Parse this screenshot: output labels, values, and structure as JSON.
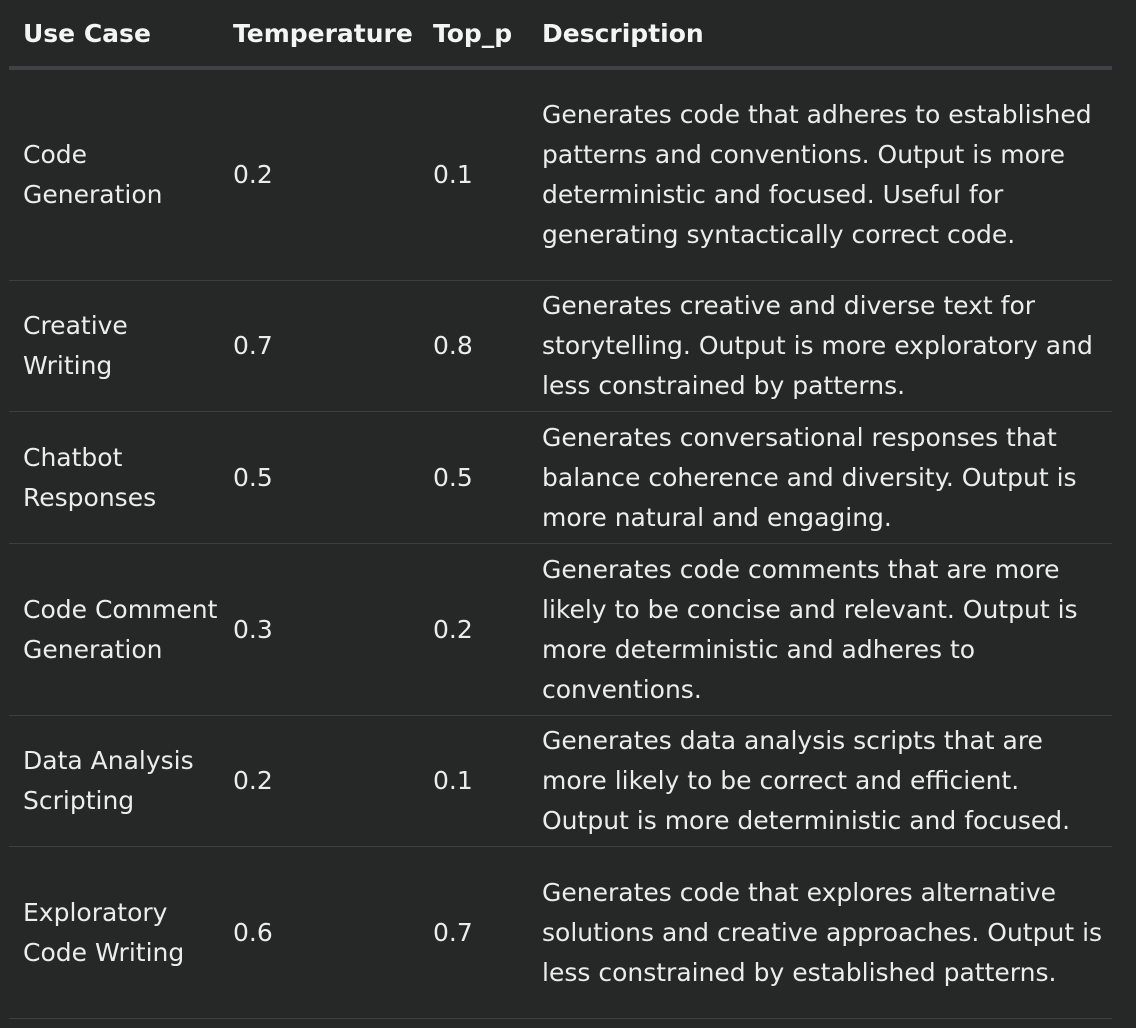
{
  "table": {
    "headers": [
      "Use Case",
      "Temperature",
      "Top_p",
      "Description"
    ],
    "rows": [
      {
        "use_case": "Code Generation",
        "temperature": "0.2",
        "top_p": "0.1",
        "description": "Generates code that adheres to established patterns and conventions. Output is more deterministic and focused. Useful for generating syntactically correct code."
      },
      {
        "use_case": "Creative Writing",
        "temperature": "0.7",
        "top_p": "0.8",
        "description": "Generates creative and diverse text for storytelling. Output is more exploratory and less constrained by patterns."
      },
      {
        "use_case": "Chatbot Responses",
        "temperature": "0.5",
        "top_p": "0.5",
        "description": "Generates conversational responses that balance coherence and diversity. Output is more natural and engaging."
      },
      {
        "use_case": "Code Comment Generation",
        "temperature": "0.3",
        "top_p": "0.2",
        "description": "Generates code comments that are more likely to be concise and relevant. Output is more deterministic and adheres to conventions."
      },
      {
        "use_case": "Data Analysis Scripting",
        "temperature": "0.2",
        "top_p": "0.1",
        "description": "Generates data analysis scripts that are more likely to be correct and efficient. Output is more deterministic and focused."
      },
      {
        "use_case": "Exploratory Code Writing",
        "temperature": "0.6",
        "top_p": "0.7",
        "description": "Generates code that explores alternative solutions and creative approaches. Output is less constrained by established patterns."
      }
    ]
  },
  "colors": {
    "background": "#262727",
    "text": "#ececec",
    "header_rule": "#3f4247",
    "row_rule": "#3d3f42"
  }
}
